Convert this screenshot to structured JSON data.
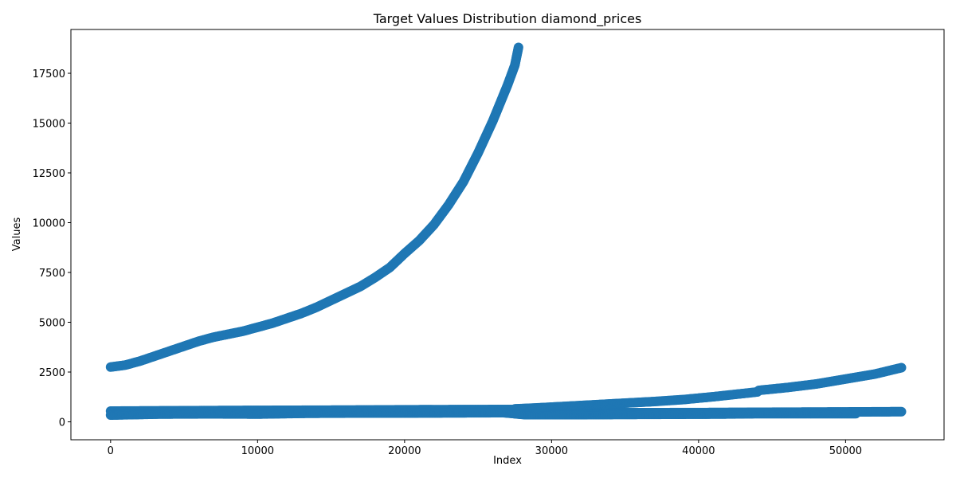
{
  "chart_data": {
    "type": "scatter",
    "title": "Target Values Distribution diamond_prices",
    "xlabel": "Index",
    "ylabel": "Values",
    "xlim": [
      -2700,
      56700
    ],
    "ylim": [
      -900,
      19700
    ],
    "xticks": [
      0,
      10000,
      20000,
      30000,
      40000,
      50000
    ],
    "yticks": [
      0,
      2500,
      5000,
      7500,
      10000,
      12500,
      15000,
      17500
    ],
    "grid": false,
    "legend": "none",
    "marker_color": "#1f77b4",
    "series": [
      {
        "x": [
          0,
          1000,
          2000,
          3000,
          4000,
          5000,
          6000,
          7000,
          8000,
          9000,
          10000,
          11000,
          12000,
          13000,
          14000,
          15000,
          16000,
          17000,
          18000,
          19000,
          20000,
          21000,
          22000,
          23000,
          24000,
          25000,
          26000,
          27000,
          27500,
          27750
        ],
        "y": [
          2750,
          2850,
          3050,
          3300,
          3550,
          3800,
          4050,
          4250,
          4400,
          4550,
          4750,
          4950,
          5200,
          5450,
          5750,
          6100,
          6450,
          6800,
          7250,
          7750,
          8450,
          9100,
          9900,
          10900,
          12050,
          13500,
          15100,
          16900,
          17900,
          18800
        ]
      },
      {
        "x": [
          0,
          4000,
          8000,
          12000,
          16000,
          20000,
          24000,
          27500,
          28500,
          32000,
          36000,
          40000,
          44000,
          48000,
          51000,
          53800
        ],
        "y": [
          540,
          555,
          570,
          580,
          590,
          605,
          615,
          620,
          480,
          470,
          460,
          465,
          480,
          490,
          500,
          510
        ]
      },
      {
        "x": [
          27500,
          29000,
          31000,
          33000,
          35000,
          37000,
          39000,
          41000,
          43000,
          44000,
          44100,
          46000,
          48000,
          50000,
          52000,
          53800
        ],
        "y": [
          650,
          700,
          780,
          860,
          940,
          1020,
          1120,
          1260,
          1420,
          1500,
          1580,
          1720,
          1900,
          2150,
          2400,
          2720
        ]
      },
      {
        "x": [
          0,
          3400,
          6800,
          10100,
          13400,
          16800,
          20100,
          23400,
          26700,
          28200,
          31600,
          35000,
          38300,
          41600,
          44000,
          47300,
          50700
        ],
        "y": [
          340,
          390,
          400,
          390,
          430,
          440,
          440,
          450,
          460,
          360,
          360,
          370,
          380,
          390,
          410,
          410,
          410
        ]
      }
    ]
  }
}
